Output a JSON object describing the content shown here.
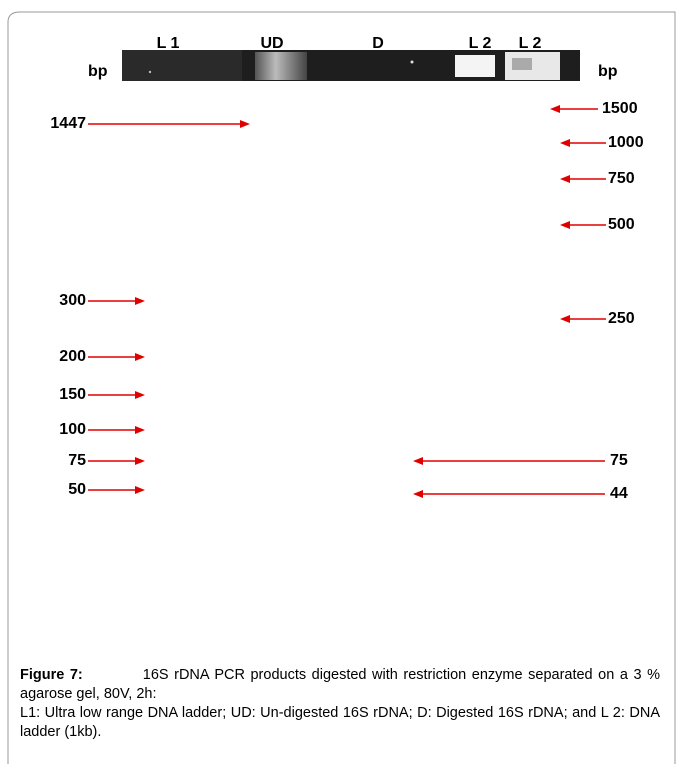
{
  "figure": {
    "lanes": [
      "L 1",
      "UD",
      "D",
      "L 2",
      "L 2"
    ],
    "bp_left": "bp",
    "bp_right": "bp",
    "left_markers": [
      "1447",
      "300",
      "200",
      "150",
      "100",
      "75",
      "50"
    ],
    "right_markers": [
      "1500",
      "1000",
      "750",
      "500",
      "250",
      "75",
      "44"
    ],
    "caption": {
      "label": "Figure 7:",
      "text": "16S rDNA PCR products digested with restriction enzyme separated on a 3 % agarose gel, 80V, 2h:",
      "legend": "L1: Ultra low range DNA ladder; UD: Un-digested 16S rDNA; D: Digested 16S rDNA; and L 2: DNA ladder (1kb)."
    }
  }
}
